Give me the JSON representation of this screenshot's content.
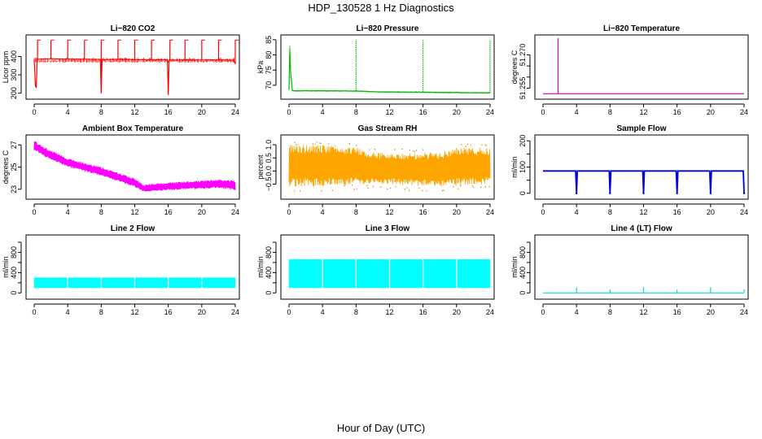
{
  "figure": {
    "title": "HDP_130528  1 Hz Diagnostics",
    "xlabel": "Hour of Day (UTC)"
  },
  "chart_data": [
    {
      "type": "line",
      "id": "co2",
      "title": "Li−820 CO2",
      "ylabel": "Licor ppm",
      "color": "#ff0000",
      "xlim": [
        0,
        24
      ],
      "xticks": [
        0,
        4,
        8,
        12,
        16,
        20,
        24
      ],
      "ylim": [
        185,
        500
      ],
      "yticks": [
        200,
        300,
        400
      ],
      "series": [
        {
          "name": "CO2",
          "x": [
            0,
            0.15,
            0.25,
            0.35,
            2,
            4,
            6,
            7.9,
            8,
            8.1,
            10,
            12,
            15.9,
            16,
            16.1,
            18,
            20,
            22,
            23.8,
            24
          ],
          "values": [
            385,
            240,
            230,
            385,
            388,
            386,
            385,
            384,
            200,
            383,
            385,
            383,
            382,
            190,
            380,
            382,
            381,
            382,
            380,
            360
          ]
        }
      ],
      "spikes": [
        {
          "x": 0.4,
          "top": 490
        },
        {
          "x": 2,
          "top": 490
        },
        {
          "x": 4,
          "top": 490
        },
        {
          "x": 6,
          "top": 490
        },
        {
          "x": 8,
          "top": 490
        },
        {
          "x": 10,
          "top": 490
        },
        {
          "x": 12,
          "top": 490
        },
        {
          "x": 14,
          "top": 490
        },
        {
          "x": 16.2,
          "top": 490
        },
        {
          "x": 18,
          "top": 490
        },
        {
          "x": 20,
          "top": 490
        },
        {
          "x": 22,
          "top": 490
        },
        {
          "x": 24,
          "top": 490
        }
      ]
    },
    {
      "type": "line",
      "id": "pressure",
      "title": "Li−820 Pressure",
      "ylabel": "kPa",
      "color": "#00bb00",
      "xlim": [
        0,
        24
      ],
      "xticks": [
        0,
        4,
        8,
        12,
        16,
        20,
        24
      ],
      "ylim": [
        66.5,
        85.5
      ],
      "yticks": [
        70,
        75,
        80,
        85
      ],
      "series": [
        {
          "name": "Pressure",
          "x": [
            0,
            0.1,
            0.2,
            0.4,
            4,
            8,
            10,
            12,
            16,
            20,
            24
          ],
          "values": [
            68.5,
            82,
            74,
            68.2,
            68.2,
            68.1,
            67.9,
            67.8,
            67.7,
            67.6,
            67.5
          ]
        }
      ],
      "spikes": [
        {
          "x": 0.1,
          "top": 83
        },
        {
          "x": 8,
          "top": 85
        },
        {
          "x": 16,
          "top": 85
        },
        {
          "x": 24,
          "top": 85
        }
      ]
    },
    {
      "type": "line",
      "id": "licor-temp",
      "title": "Li−820 Temperature",
      "ylabel": "degrees C",
      "color": "#cc00cc",
      "xlim": [
        0,
        24
      ],
      "xticks": [
        0,
        4,
        8,
        12,
        16,
        20,
        24
      ],
      "ylim": [
        51.2515,
        51.2775
      ],
      "yticks": [
        51.255,
        51.26,
        51.265,
        51.27
      ],
      "ytick_labels": [
        "51.255",
        "",
        "",
        "51.270"
      ],
      "series": [
        {
          "name": "Temperature",
          "x": [
            0,
            24
          ],
          "values": [
            51.2525,
            51.2525
          ]
        }
      ],
      "spikes": [
        {
          "x": 1.8,
          "top": 51.2775
        }
      ]
    },
    {
      "type": "band",
      "id": "ambient-temp",
      "title": "Ambient Box Temperature",
      "ylabel": "degrees C",
      "color": "#ff00ff",
      "xlim": [
        0,
        24
      ],
      "xticks": [
        0,
        4,
        8,
        12,
        16,
        20,
        24
      ],
      "ylim": [
        22.4,
        27.6
      ],
      "yticks": [
        23,
        25,
        27
      ],
      "band": {
        "x": [
          0,
          1,
          2,
          4,
          6,
          8,
          10,
          12,
          13,
          14,
          16,
          18,
          20,
          22,
          24
        ],
        "low": [
          26.5,
          26.0,
          25.7,
          25.0,
          24.6,
          24.2,
          23.7,
          23.2,
          22.8,
          22.8,
          22.9,
          23.0,
          23.0,
          23.1,
          22.9
        ],
        "high": [
          27.4,
          26.9,
          26.5,
          25.8,
          25.4,
          25.0,
          24.5,
          24.0,
          23.4,
          23.5,
          23.6,
          23.7,
          23.8,
          23.9,
          23.8
        ]
      }
    },
    {
      "type": "band",
      "id": "rh",
      "title": "Gas Stream RH",
      "ylabel": "percent",
      "color": "#ffa500",
      "xlim": [
        0,
        24
      ],
      "xticks": [
        0,
        4,
        8,
        12,
        16,
        20,
        24
      ],
      "ylim": [
        -0.95,
        1.25
      ],
      "yticks": [
        -0.5,
        0.0,
        0.5,
        1.0
      ],
      "ytick_labels": [
        "−0.5",
        "0.0",
        "0.5",
        "1.0"
      ],
      "band": {
        "x": [
          0,
          4,
          8,
          10,
          14,
          18,
          20,
          24
        ],
        "low": [
          -0.6,
          -0.6,
          -0.5,
          -0.5,
          -0.55,
          -0.6,
          -0.55,
          -0.5
        ],
        "high": [
          1.0,
          1.0,
          0.9,
          0.7,
          0.7,
          0.7,
          0.9,
          0.9
        ]
      }
    },
    {
      "type": "line",
      "id": "sample-flow",
      "title": "Sample Flow",
      "ylabel": "ml/min",
      "color": "#0000dd",
      "xlim": [
        0,
        24
      ],
      "xticks": [
        0,
        4,
        8,
        12,
        16,
        20,
        24
      ],
      "ylim": [
        -10,
        210
      ],
      "yticks": [
        0,
        50,
        100,
        150,
        200
      ],
      "ytick_labels": [
        "0",
        "",
        "100",
        "",
        "200"
      ],
      "series": [
        {
          "name": "Sample Flow",
          "x": [
            0,
            3.9,
            4,
            4.1,
            7.9,
            8,
            8.1,
            11.9,
            12,
            12.1,
            15.9,
            16,
            16.1,
            19.9,
            20,
            20.1,
            23.9,
            24
          ],
          "values": [
            85,
            85,
            0,
            85,
            85,
            0,
            85,
            85,
            0,
            85,
            85,
            0,
            85,
            85,
            0,
            85,
            85,
            0
          ]
        }
      ]
    },
    {
      "type": "band",
      "id": "line2-flow",
      "title": "Line 2 Flow",
      "ylabel": "ml/min",
      "color": "#00ffff",
      "xlim": [
        0,
        24
      ],
      "xticks": [
        0,
        4,
        8,
        12,
        16,
        20,
        24
      ],
      "ylim": [
        -60,
        1080
      ],
      "yticks": [
        0,
        200,
        400,
        600,
        800,
        1000
      ],
      "ytick_labels": [
        "0",
        "",
        "400",
        "",
        "800",
        ""
      ],
      "band": {
        "x": [
          0,
          24
        ],
        "low": [
          100,
          100
        ],
        "high": [
          300,
          300
        ]
      },
      "gaps": [
        4,
        8,
        12,
        16,
        20
      ]
    },
    {
      "type": "band",
      "id": "line3-flow",
      "title": "Line 3 Flow",
      "ylabel": "ml/min",
      "color": "#00ffff",
      "xlim": [
        0,
        24
      ],
      "xticks": [
        0,
        4,
        8,
        12,
        16,
        20,
        24
      ],
      "ylim": [
        -60,
        1080
      ],
      "yticks": [
        0,
        200,
        400,
        600,
        800,
        1000
      ],
      "ytick_labels": [
        "0",
        "",
        "400",
        "",
        "800",
        ""
      ],
      "band": {
        "x": [
          0,
          24
        ],
        "low": [
          100,
          100
        ],
        "high": [
          660,
          660
        ]
      },
      "gaps": [
        4,
        8,
        12,
        16,
        20
      ]
    },
    {
      "type": "line",
      "id": "line4-flow",
      "title": "Line 4 (LT) Flow",
      "ylabel": "ml/min",
      "color": "#00dddd",
      "xlim": [
        0,
        24
      ],
      "xticks": [
        0,
        4,
        8,
        12,
        16,
        20,
        24
      ],
      "ylim": [
        -60,
        1080
      ],
      "yticks": [
        0,
        200,
        400,
        600,
        800,
        1000
      ],
      "ytick_labels": [
        "0",
        "",
        "400",
        "",
        "800",
        ""
      ],
      "series": [
        {
          "name": "Line 4 Flow",
          "x": [
            0,
            24
          ],
          "values": [
            0,
            0
          ]
        }
      ],
      "spikes": [
        {
          "x": 4,
          "top": 110
        },
        {
          "x": 8,
          "top": 70
        },
        {
          "x": 12,
          "top": 110
        },
        {
          "x": 16,
          "top": 70
        },
        {
          "x": 20,
          "top": 110
        },
        {
          "x": 24,
          "top": 70
        }
      ]
    }
  ]
}
